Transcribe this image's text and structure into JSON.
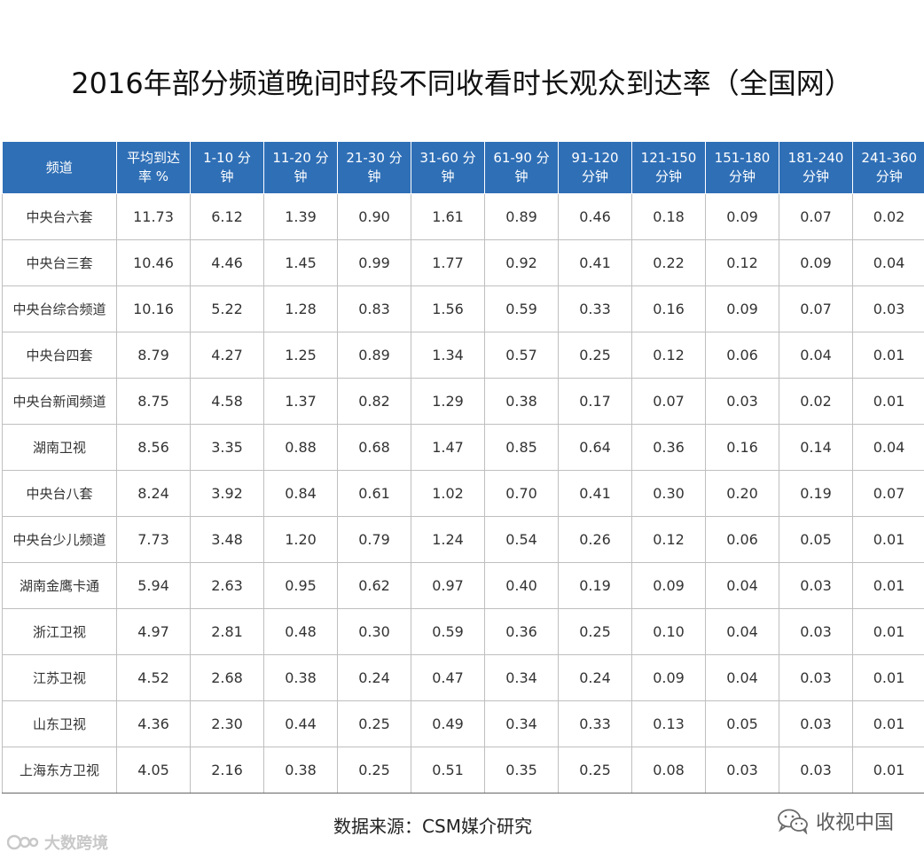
{
  "title": "2016年部分频道晚间时段不同收看时长观众到达率（全国网）",
  "table": {
    "headers": [
      [
        "频道"
      ],
      [
        "平均到达",
        "率 %"
      ],
      [
        "1-10 分",
        "钟"
      ],
      [
        "11-20 分",
        "钟"
      ],
      [
        "21-30 分",
        "钟"
      ],
      [
        "31-60 分",
        "钟"
      ],
      [
        "61-90 分",
        "钟"
      ],
      [
        "91-120",
        "分钟"
      ],
      [
        "121-150",
        "分钟"
      ],
      [
        "151-180",
        "分钟"
      ],
      [
        "181-240",
        "分钟"
      ],
      [
        "241-360",
        "分钟"
      ]
    ],
    "rows": [
      [
        "中央台六套",
        "11.73",
        "6.12",
        "1.39",
        "0.90",
        "1.61",
        "0.89",
        "0.46",
        "0.18",
        "0.09",
        "0.07",
        "0.02"
      ],
      [
        "中央台三套",
        "10.46",
        "4.46",
        "1.45",
        "0.99",
        "1.77",
        "0.92",
        "0.41",
        "0.22",
        "0.12",
        "0.09",
        "0.04"
      ],
      [
        "中央台综合频道",
        "10.16",
        "5.22",
        "1.28",
        "0.83",
        "1.56",
        "0.59",
        "0.33",
        "0.16",
        "0.09",
        "0.07",
        "0.03"
      ],
      [
        "中央台四套",
        "8.79",
        "4.27",
        "1.25",
        "0.89",
        "1.34",
        "0.57",
        "0.25",
        "0.12",
        "0.06",
        "0.04",
        "0.01"
      ],
      [
        "中央台新闻频道",
        "8.75",
        "4.58",
        "1.37",
        "0.82",
        "1.29",
        "0.38",
        "0.17",
        "0.07",
        "0.03",
        "0.02",
        "0.01"
      ],
      [
        "湖南卫视",
        "8.56",
        "3.35",
        "0.88",
        "0.68",
        "1.47",
        "0.85",
        "0.64",
        "0.36",
        "0.16",
        "0.14",
        "0.04"
      ],
      [
        "中央台八套",
        "8.24",
        "3.92",
        "0.84",
        "0.61",
        "1.02",
        "0.70",
        "0.41",
        "0.30",
        "0.20",
        "0.19",
        "0.07"
      ],
      [
        "中央台少儿频道",
        "7.73",
        "3.48",
        "1.20",
        "0.79",
        "1.24",
        "0.54",
        "0.26",
        "0.12",
        "0.06",
        "0.05",
        "0.01"
      ],
      [
        "湖南金鹰卡通",
        "5.94",
        "2.63",
        "0.95",
        "0.62",
        "0.97",
        "0.40",
        "0.19",
        "0.09",
        "0.04",
        "0.03",
        "0.01"
      ],
      [
        "浙江卫视",
        "4.97",
        "2.81",
        "0.48",
        "0.30",
        "0.59",
        "0.36",
        "0.25",
        "0.10",
        "0.04",
        "0.03",
        "0.01"
      ],
      [
        "江苏卫视",
        "4.52",
        "2.68",
        "0.38",
        "0.24",
        "0.47",
        "0.34",
        "0.24",
        "0.09",
        "0.04",
        "0.03",
        "0.01"
      ],
      [
        "山东卫视",
        "4.36",
        "2.30",
        "0.44",
        "0.25",
        "0.49",
        "0.34",
        "0.33",
        "0.13",
        "0.05",
        "0.03",
        "0.01"
      ],
      [
        "上海东方卫视",
        "4.05",
        "2.16",
        "0.38",
        "0.25",
        "0.51",
        "0.35",
        "0.25",
        "0.08",
        "0.03",
        "0.03",
        "0.01"
      ]
    ]
  },
  "source": "数据来源：CSM媒介研究",
  "watermark_left": "大数跨境",
  "watermark_right": "收视中国",
  "colors": {
    "header_bg": "#2f6fb6",
    "header_text": "#ffffff",
    "border": "#bfbfbf"
  },
  "icons": {
    "left_watermark": "logo-mark-icon",
    "right_watermark": "wechat-icon"
  }
}
